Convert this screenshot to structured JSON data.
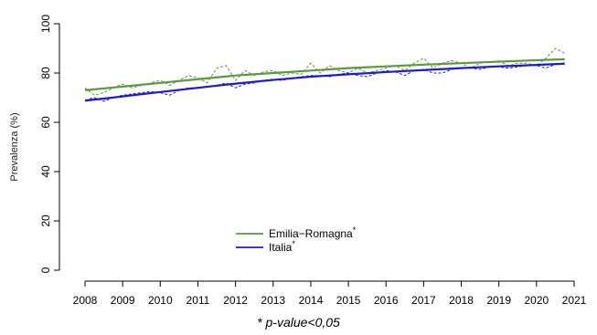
{
  "chart_data": {
    "type": "line",
    "ylabel": "Prevalenza (%)",
    "xlabel": "",
    "ylim": [
      0,
      100
    ],
    "xlim": [
      2008,
      2021
    ],
    "x_ticks": [
      2008,
      2009,
      2010,
      2011,
      2012,
      2013,
      2014,
      2015,
      2016,
      2017,
      2018,
      2019,
      2020,
      2021
    ],
    "y_ticks": [
      0,
      20,
      40,
      60,
      80,
      100
    ],
    "grid": false,
    "legend_position": "bottom-center",
    "colors": {
      "emilia_romagna": "#5a9a3c",
      "italia": "#1c1cd4"
    },
    "series": [
      {
        "name": "Emilia−Romagna",
        "marker": "*",
        "kind": "trend",
        "x": [
          2008,
          2009,
          2010,
          2011,
          2012,
          2013,
          2014,
          2015,
          2016,
          2017,
          2018,
          2019,
          2020,
          2020.75
        ],
        "values": [
          73,
          74.5,
          76,
          77.5,
          79,
          80,
          81,
          82,
          82.7,
          83.4,
          84,
          84.6,
          85.2,
          85.6
        ]
      },
      {
        "name": "Italia",
        "marker": "*",
        "kind": "trend",
        "x": [
          2008,
          2009,
          2010,
          2011,
          2012,
          2013,
          2014,
          2015,
          2016,
          2017,
          2018,
          2019,
          2020,
          2020.75
        ],
        "values": [
          68.8,
          70.5,
          72.3,
          74,
          75.7,
          77.2,
          78.5,
          79.5,
          80.4,
          81.2,
          82,
          82.7,
          83.3,
          83.8
        ]
      },
      {
        "kind": "observed",
        "x": [
          2008,
          2008.25,
          2008.5,
          2008.75,
          2009,
          2009.25,
          2009.5,
          2009.75,
          2010,
          2010.25,
          2010.5,
          2010.75,
          2011,
          2011.25,
          2011.5,
          2011.75,
          2012,
          2012.25,
          2012.5,
          2012.75,
          2013,
          2013.25,
          2013.5,
          2013.75,
          2014,
          2014.25,
          2014.5,
          2014.75,
          2015,
          2015.25,
          2015.5,
          2015.75,
          2016,
          2016.25,
          2016.5,
          2016.75,
          2017,
          2017.25,
          2017.5,
          2017.75,
          2018,
          2018.25,
          2018.5,
          2018.75,
          2019,
          2019.25,
          2019.5,
          2019.75,
          2020,
          2020.25,
          2020.5,
          2020.75
        ],
        "values": [
          74,
          71,
          72,
          74,
          75.5,
          74,
          75,
          76,
          77,
          75,
          77,
          79,
          78,
          76,
          82,
          83,
          77,
          81,
          79,
          80.5,
          81,
          79,
          80,
          79.5,
          84,
          80,
          83,
          81,
          80,
          82,
          80,
          81,
          82,
          83,
          81,
          84,
          86,
          82,
          84,
          85,
          84,
          82,
          84,
          84.5,
          85,
          83,
          84,
          84,
          83,
          86,
          90,
          88
        ]
      },
      {
        "kind": "observed",
        "x": [
          2008,
          2008.25,
          2008.5,
          2008.75,
          2009,
          2009.25,
          2009.5,
          2009.75,
          2010,
          2010.25,
          2010.5,
          2010.75,
          2011,
          2011.25,
          2011.5,
          2011.75,
          2012,
          2012.25,
          2012.5,
          2012.75,
          2013,
          2013.25,
          2013.5,
          2013.75,
          2014,
          2014.25,
          2014.5,
          2014.75,
          2015,
          2015.25,
          2015.5,
          2015.75,
          2016,
          2016.25,
          2016.5,
          2016.75,
          2017,
          2017.25,
          2017.5,
          2017.75,
          2018,
          2018.25,
          2018.5,
          2018.75,
          2019,
          2019.25,
          2019.5,
          2019.75,
          2020,
          2020.25,
          2020.5,
          2020.75
        ],
        "values": [
          69,
          70,
          68.5,
          70,
          71,
          71.5,
          72,
          72.5,
          72,
          71,
          73,
          74,
          74,
          74.5,
          75,
          76,
          74,
          75.5,
          76,
          77,
          77.5,
          77,
          78,
          78.5,
          79,
          79,
          78.5,
          79.5,
          80,
          79,
          78.5,
          80,
          81,
          80.5,
          79,
          81,
          81.5,
          80,
          80,
          81.5,
          82,
          82,
          81.5,
          82.5,
          82.5,
          82,
          82.5,
          83,
          83,
          82,
          83.5,
          84
        ]
      }
    ]
  },
  "footnote": "* p-value<0,05"
}
